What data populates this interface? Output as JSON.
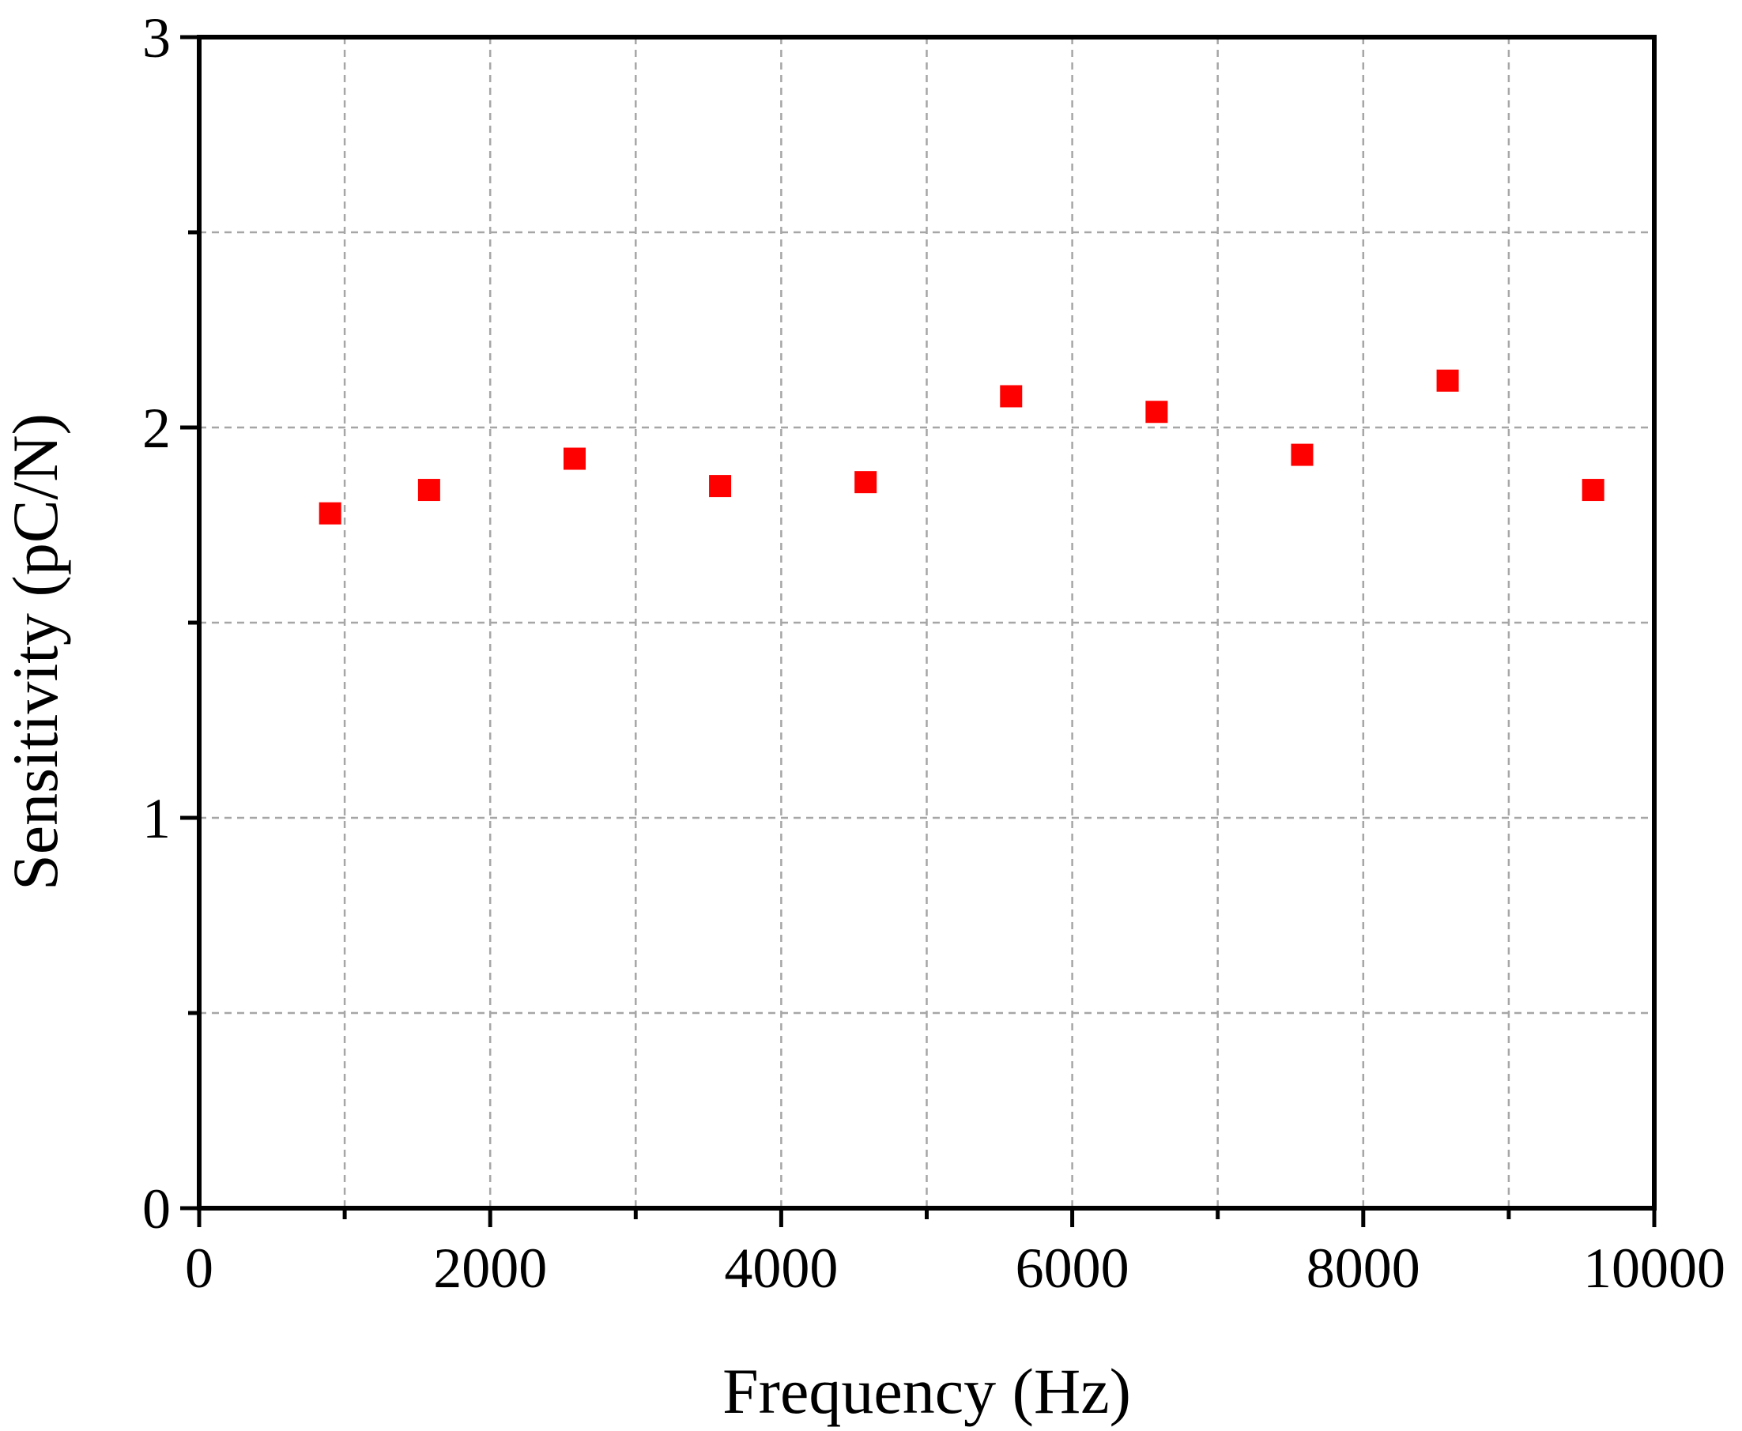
{
  "chart_data": {
    "type": "scatter",
    "title": "",
    "xlabel": "Frequency (Hz)",
    "ylabel": "Sensitivity (pC/N)",
    "xlim": [
      0,
      10000
    ],
    "ylim": [
      0,
      3
    ],
    "xticks": [
      0,
      2000,
      4000,
      6000,
      8000,
      10000
    ],
    "xticks_minor": [
      1000,
      3000,
      5000,
      7000,
      9000
    ],
    "yticks": [
      0,
      1,
      2,
      3
    ],
    "yticks_minor": [
      0.5,
      1.5,
      2.5
    ],
    "x_tick_labels": [
      "0",
      "2000",
      "4000",
      "6000",
      "8000",
      "10000"
    ],
    "y_tick_labels": [
      "0",
      "1",
      "2",
      "3"
    ],
    "grid": true,
    "marker": "square",
    "color": "#ff0000",
    "series": [
      {
        "x": [
          900,
          1580,
          2580,
          3580,
          4580,
          5580,
          6580,
          7580,
          8580,
          9580
        ],
        "y": [
          1.78,
          1.84,
          1.92,
          1.85,
          1.86,
          2.08,
          2.04,
          1.93,
          2.12,
          1.84
        ]
      }
    ]
  }
}
